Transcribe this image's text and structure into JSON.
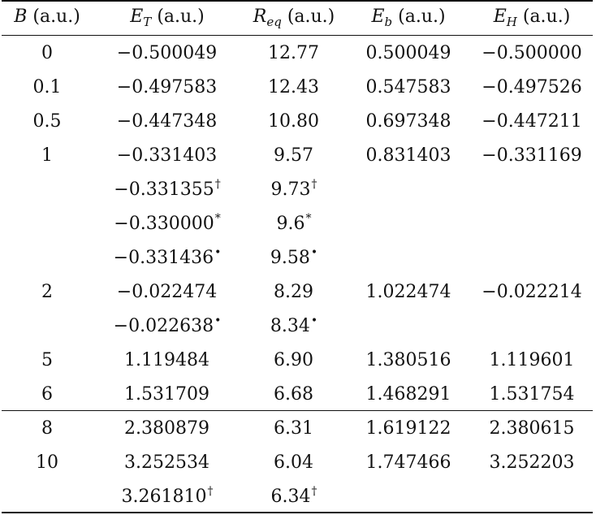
{
  "table": {
    "headers": [
      {
        "sym": "B",
        "sub": "",
        "unit": "(a.u.)"
      },
      {
        "sym": "E",
        "sub": "T",
        "unit": "(a.u.)"
      },
      {
        "sym": "R",
        "sub": "eq",
        "unit": "(a.u.)"
      },
      {
        "sym": "E",
        "sub": "b",
        "unit": "(a.u.)"
      },
      {
        "sym": "E",
        "sub": "H",
        "unit": "(a.u.)"
      }
    ],
    "rows": [
      {
        "B": "0",
        "ET": "−0.500049",
        "ET_mark": "",
        "Req": "12.77",
        "Req_mark": "",
        "Eb": "0.500049",
        "EH": "−0.500000"
      },
      {
        "B": "0.1",
        "ET": "−0.497583",
        "ET_mark": "",
        "Req": "12.43",
        "Req_mark": "",
        "Eb": "0.547583",
        "EH": "−0.497526"
      },
      {
        "B": "0.5",
        "ET": "−0.447348",
        "ET_mark": "",
        "Req": "10.80",
        "Req_mark": "",
        "Eb": "0.697348",
        "EH": "−0.447211"
      },
      {
        "B": "1",
        "ET": "−0.331403",
        "ET_mark": "",
        "Req": "9.57",
        "Req_mark": "",
        "Eb": "0.831403",
        "EH": "−0.331169"
      },
      {
        "B": "",
        "ET": "−0.331355",
        "ET_mark": "†",
        "Req": "9.73",
        "Req_mark": "†",
        "Eb": "",
        "EH": ""
      },
      {
        "B": "",
        "ET": "−0.330000",
        "ET_mark": "*",
        "Req": "9.6",
        "Req_mark": "*",
        "Eb": "",
        "EH": ""
      },
      {
        "B": "",
        "ET": "−0.331436",
        "ET_mark": "•",
        "Req": "9.58",
        "Req_mark": "•",
        "Eb": "",
        "EH": ""
      },
      {
        "B": "2",
        "ET": "−0.022474",
        "ET_mark": "",
        "Req": "8.29",
        "Req_mark": "",
        "Eb": "1.022474",
        "EH": "−0.022214"
      },
      {
        "B": "",
        "ET": "−0.022638",
        "ET_mark": "•",
        "Req": "8.34",
        "Req_mark": "•",
        "Eb": "",
        "EH": ""
      },
      {
        "B": "5",
        "ET": "1.119484",
        "ET_mark": "",
        "Req": "6.90",
        "Req_mark": "",
        "Eb": "1.380516",
        "EH": "1.119601"
      },
      {
        "B": "6",
        "ET": "1.531709",
        "ET_mark": "",
        "Req": "6.68",
        "Req_mark": "",
        "Eb": "1.468291",
        "EH": "1.531754"
      },
      {
        "B": "8",
        "ET": "2.380879",
        "ET_mark": "",
        "Req": "6.31",
        "Req_mark": "",
        "Eb": "1.619122",
        "EH": "2.380615"
      },
      {
        "B": "10",
        "ET": "3.252534",
        "ET_mark": "",
        "Req": "6.04",
        "Req_mark": "",
        "Eb": "1.747466",
        "EH": "3.252203"
      },
      {
        "B": "",
        "ET": "3.261810",
        "ET_mark": "†",
        "Req": "6.34",
        "Req_mark": "†",
        "Eb": "",
        "EH": ""
      }
    ]
  }
}
